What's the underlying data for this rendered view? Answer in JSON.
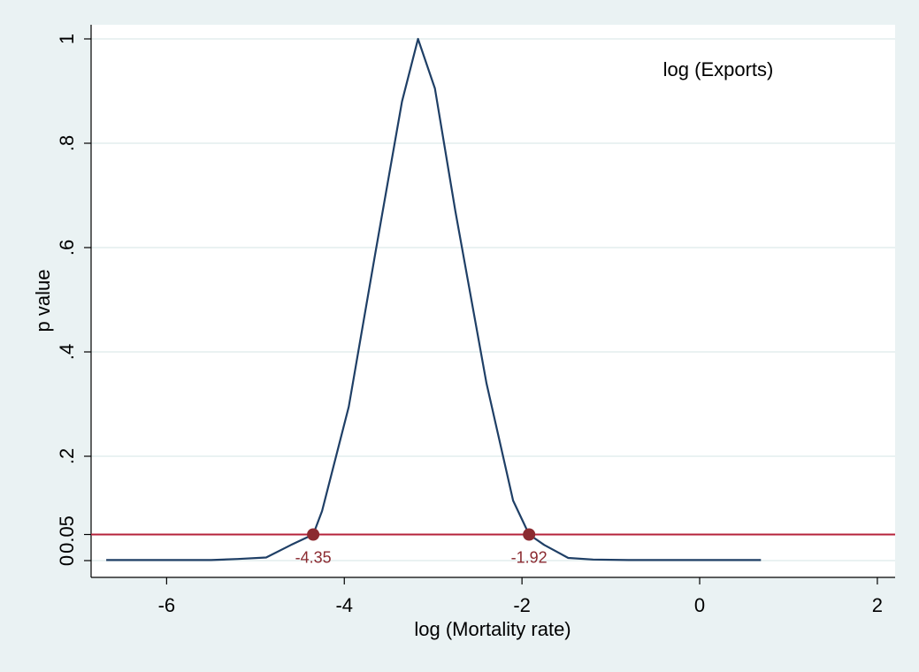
{
  "chart_data": {
    "type": "line",
    "annotation": "log (Exports)",
    "xlabel": "log (Mortality rate)",
    "ylabel": "p value",
    "xlim": [
      -6.85,
      2.2
    ],
    "ylim": [
      0,
      1
    ],
    "x_ticks": [
      {
        "value": -6,
        "label": "-6"
      },
      {
        "value": -4,
        "label": "-4"
      },
      {
        "value": -2,
        "label": "-2"
      },
      {
        "value": 0,
        "label": "0"
      },
      {
        "value": 2,
        "label": "2"
      }
    ],
    "y_ticks": [
      {
        "value": 0,
        "label": "0"
      },
      {
        "value": 0.05,
        "label": "0.05"
      },
      {
        "value": 0.2,
        "label": ".2"
      },
      {
        "value": 0.4,
        "label": ".4"
      },
      {
        "value": 0.6,
        "label": ".6"
      },
      {
        "value": 0.8,
        "label": ".8"
      },
      {
        "value": 1,
        "label": "1"
      }
    ],
    "grid": true,
    "series": [
      {
        "color": "#1f3f66",
        "x": [
          -6.68,
          -6.2,
          -5.8,
          -5.5,
          -5.2,
          -4.88,
          -4.6,
          -4.35,
          -4.25,
          -3.95,
          -3.65,
          -3.35,
          -3.17,
          -2.98,
          -2.75,
          -2.4,
          -2.1,
          -1.92,
          -1.75,
          -1.48,
          -1.2,
          -0.8,
          -0.4,
          0,
          0.4,
          0.69
        ],
        "y": [
          0.001,
          0.001,
          0.001,
          0.001,
          0.003,
          0.006,
          0.03,
          0.05,
          0.095,
          0.295,
          0.59,
          0.88,
          1.0,
          0.905,
          0.67,
          0.34,
          0.115,
          0.05,
          0.03,
          0.005,
          0.002,
          0.001,
          0.001,
          0.001,
          0.001,
          0.001
        ]
      }
    ],
    "reference_line": {
      "y": 0.05,
      "color": "#b5223a"
    },
    "markers": [
      {
        "x": -4.35,
        "y": 0.05,
        "label": "-4.35",
        "color": "#8b2a30"
      },
      {
        "x": -1.92,
        "y": 0.05,
        "label": "-1.92",
        "color": "#8b2a30"
      }
    ]
  }
}
